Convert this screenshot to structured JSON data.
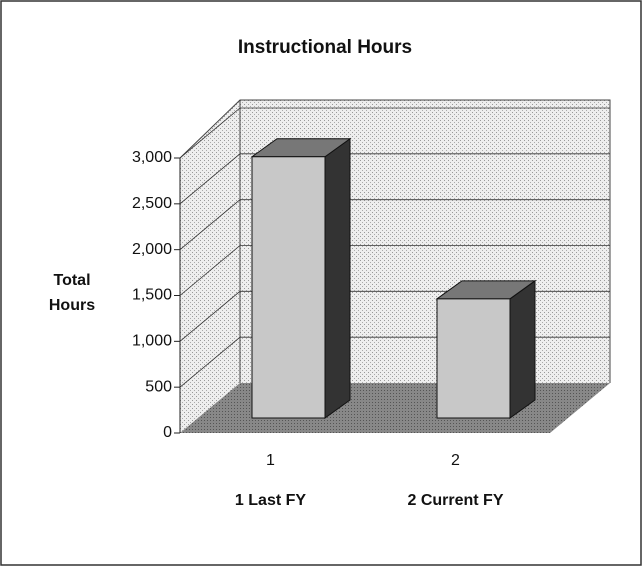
{
  "chart_data": {
    "type": "bar3d",
    "title": "Instructional Hours",
    "y_label": "Total Hours",
    "categories": [
      "1",
      "2"
    ],
    "category_labels": [
      "1 Last FY",
      "2 Current FY"
    ],
    "values": [
      2850,
      1300
    ],
    "color": "#c8c8c8",
    "ylim": [
      0,
      3000
    ],
    "yticks": [
      0,
      500,
      {
        "value": 1000,
        "label": "1,000"
      },
      {
        "value": 1500,
        "label": "1,500"
      },
      {
        "value": 2000,
        "label": "2,000"
      },
      {
        "value": 2500,
        "label": "2,500"
      },
      {
        "value": 3000,
        "label": "3,000"
      }
    ],
    "grid": true
  }
}
